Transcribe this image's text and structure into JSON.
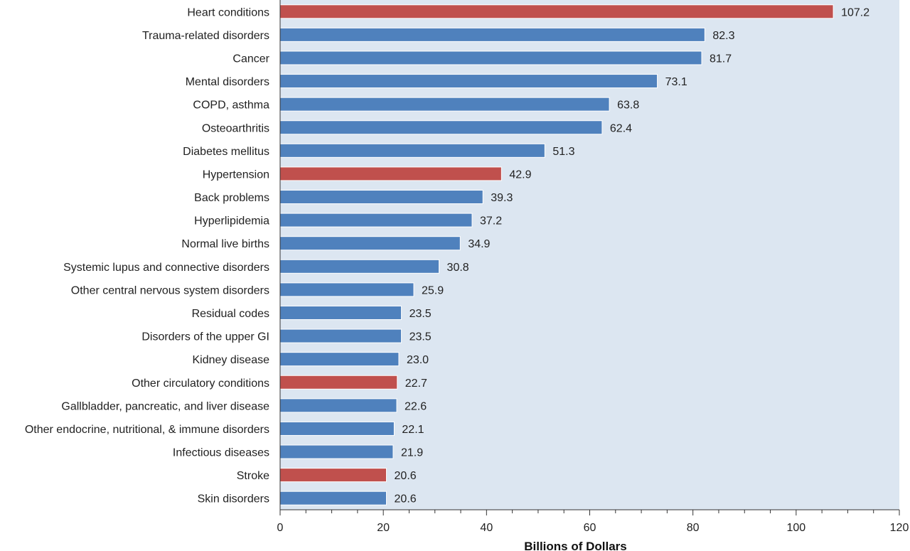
{
  "chart_data": {
    "type": "bar",
    "orientation": "horizontal",
    "xlabel": "Billions of Dollars",
    "xlim": [
      0,
      120
    ],
    "xticks": [
      0,
      20,
      40,
      60,
      80,
      100,
      120
    ],
    "categories": [
      "Heart conditions",
      "Trauma-related disorders",
      "Cancer",
      "Mental disorders",
      "COPD, asthma",
      "Osteoarthritis",
      "Diabetes mellitus",
      "Hypertension",
      "Back problems",
      "Hyperlipidemia",
      "Normal live births",
      "Systemic lupus and connective disorders",
      "Other central nervous system disorders",
      "Residual codes",
      "Disorders of the upper GI",
      "Kidney disease",
      "Other circulatory conditions",
      "Gallbladder, pancreatic, and liver disease",
      "Other endocrine, nutritional, & immune disorders",
      "Infectious diseases",
      "Stroke",
      "Skin disorders"
    ],
    "values": [
      107.2,
      82.3,
      81.7,
      73.1,
      63.8,
      62.4,
      51.3,
      42.9,
      39.3,
      37.2,
      34.9,
      30.8,
      25.9,
      23.5,
      23.5,
      23.0,
      22.7,
      22.6,
      22.1,
      21.9,
      20.6,
      20.6
    ],
    "value_labels": [
      "107.2",
      "82.3",
      "81.7",
      "73.1",
      "63.8",
      "62.4",
      "51.3",
      "42.9",
      "39.3",
      "37.2",
      "34.9",
      "30.8",
      "25.9",
      "23.5",
      "23.5",
      "23.0",
      "22.7",
      "22.6",
      "22.1",
      "21.9",
      "20.6",
      "20.6"
    ],
    "highlighted": [
      true,
      false,
      false,
      false,
      false,
      false,
      false,
      true,
      false,
      false,
      false,
      false,
      false,
      false,
      false,
      false,
      true,
      false,
      false,
      false,
      true,
      false
    ],
    "colors": {
      "highlight": "#c0504d",
      "default": "#4f81bd",
      "plot_background": "#dce6f1"
    },
    "grid": false
  }
}
